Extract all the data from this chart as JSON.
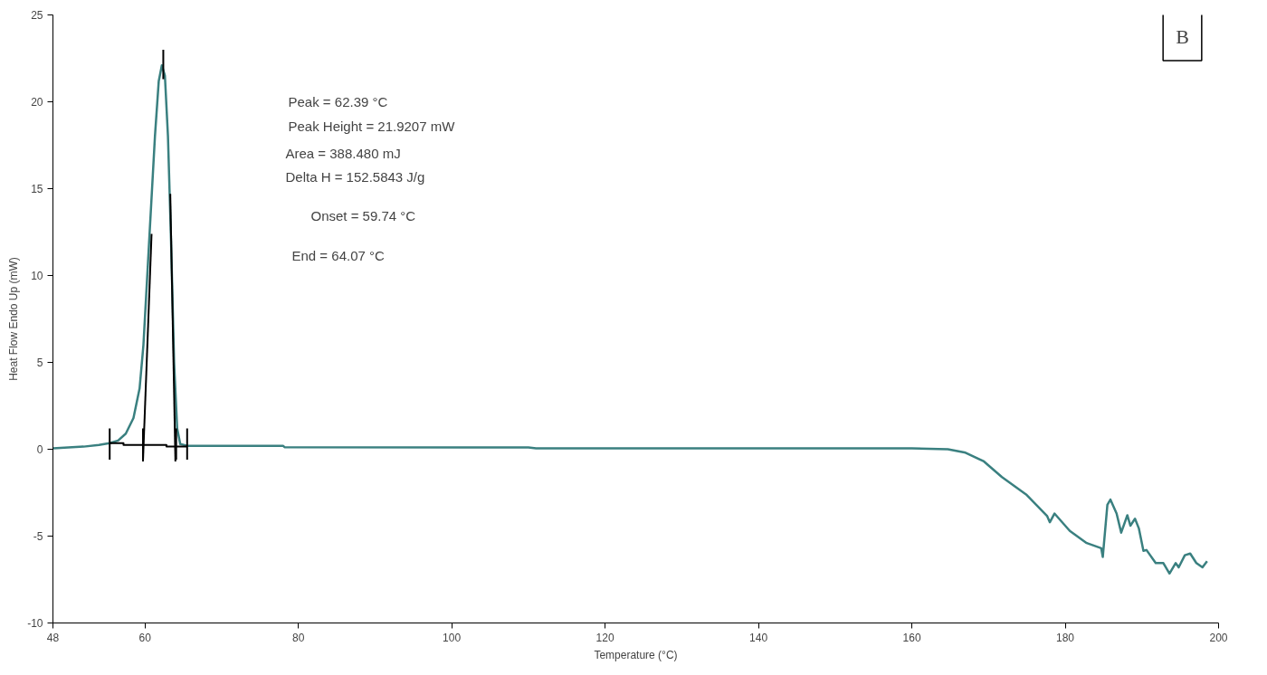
{
  "chart_data": {
    "type": "line",
    "xlabel": "Temperature (°C)",
    "ylabel": "Heat Flow Endo Up (mW)",
    "xlim": [
      48,
      200
    ],
    "ylim": [
      -10,
      25
    ],
    "xticks": [
      48,
      60,
      80,
      100,
      120,
      140,
      160,
      180,
      200
    ],
    "yticks": [
      -10,
      -5,
      0,
      5,
      10,
      15,
      20,
      25
    ],
    "grid": false,
    "series": [
      {
        "color": "#3a8080",
        "x": [
          48,
          50,
          52,
          54,
          55.4,
          56.5,
          57.5,
          58.5,
          59.3,
          59.8,
          60.3,
          60.8,
          61.3,
          61.8,
          62.2,
          62.6,
          63,
          63.4,
          63.8,
          64.2,
          64.6,
          65.5,
          70,
          78,
          78.2,
          110,
          111,
          113,
          120,
          140,
          160,
          164.7,
          167,
          169.4,
          171.75,
          174.9,
          177.65,
          178,
          178.6,
          180.6,
          182.8,
          184.7,
          184.9,
          185.5,
          185.9,
          186.7,
          187.3,
          188.1,
          188.5,
          189.1,
          189.6,
          190.2,
          190.6,
          191.8,
          192.8,
          193.6,
          194.4,
          194.8,
          195.6,
          196.3,
          197.1,
          197.9,
          198.5
        ],
        "values": [
          0.05,
          0.1,
          0.15,
          0.25,
          0.35,
          0.5,
          0.9,
          1.8,
          3.5,
          6,
          10,
          14,
          18,
          21.2,
          22.1,
          21.5,
          18,
          12,
          5,
          1.2,
          0.3,
          0.2,
          0.2,
          0.2,
          0.12,
          0.1,
          0.05,
          0.05,
          0.05,
          0.05,
          0.05,
          0,
          -0.2,
          -0.7,
          -1.6,
          -2.6,
          -3.85,
          -4.2,
          -3.7,
          -4.7,
          -5.4,
          -5.7,
          -6.2,
          -3.2,
          -2.9,
          -3.7,
          -4.8,
          -3.8,
          -4.4,
          -4,
          -4.55,
          -5.85,
          -5.8,
          -6.55,
          -6.55,
          -7.15,
          -6.55,
          -6.8,
          -6.1,
          -6,
          -6.55,
          -6.8,
          -6.45
        ]
      },
      {
        "color": "#000000",
        "x": [
          55.4,
          57.2,
          57.2,
          62.8,
          62.8,
          65.5
        ],
        "values": [
          0.35,
          0.35,
          0.25,
          0.25,
          0.15,
          0.15
        ]
      },
      {
        "color": "#000000",
        "x": [
          59.74,
          60.86
        ],
        "values": [
          -0.7,
          12.4
        ]
      },
      {
        "color": "#000000",
        "x": [
          63.3,
          63.97
        ],
        "values": [
          14.7,
          -0.7
        ]
      },
      {
        "color": "#000000",
        "x": [
          55.4,
          55.4,
          null,
          59.74,
          59.74,
          null,
          64.07,
          64.07,
          null,
          65.5,
          65.5,
          null,
          62.39,
          62.39
        ],
        "values": [
          1.2,
          -0.6,
          null,
          1.2,
          -0.6,
          null,
          1.2,
          -0.6,
          null,
          1.2,
          -0.6,
          null,
          23,
          21.3
        ]
      }
    ],
    "annotations": [
      "Peak = 62.39 °C",
      "Peak Height = 21.9207 mW",
      "Area = 388.480 mJ",
      "Delta H = 152.5843 J/g",
      "Onset = 59.74 °C",
      "End = 64.07 °C",
      "B"
    ]
  }
}
